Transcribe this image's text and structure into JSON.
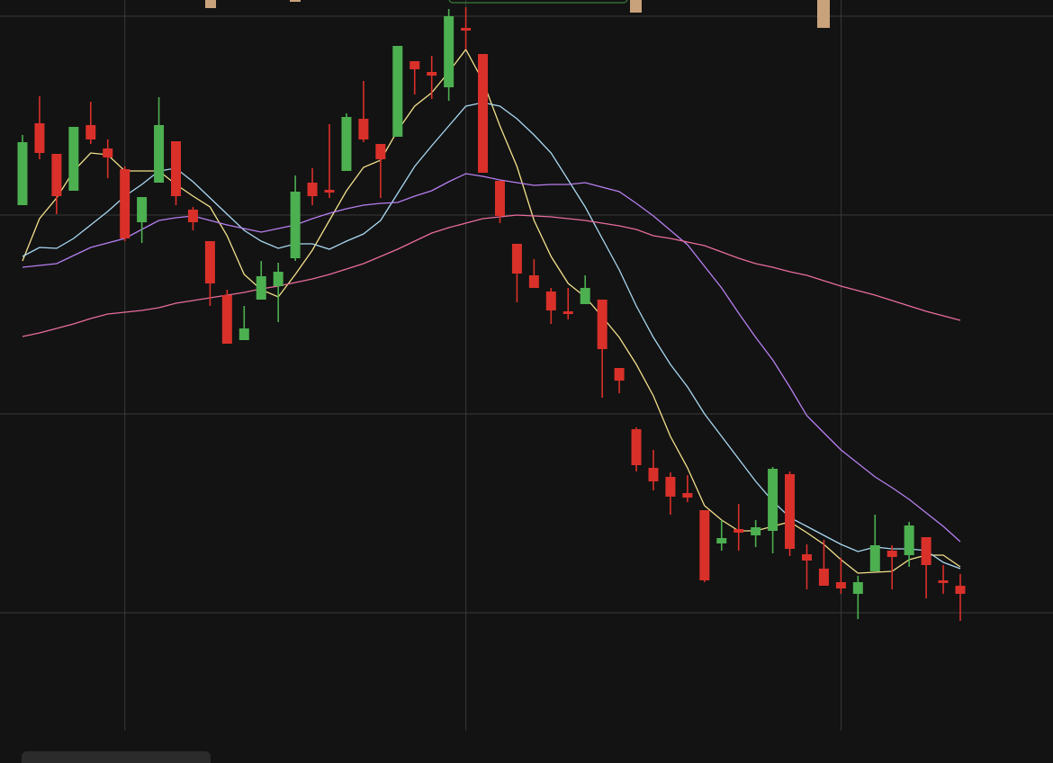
{
  "chart_data": {
    "type": "candlestick",
    "categories": [
      null,
      null,
      null,
      null,
      null,
      null,
      null,
      null,
      null,
      null,
      null,
      null,
      null,
      null,
      null,
      null,
      null,
      null,
      null,
      null,
      null,
      null,
      null,
      null,
      null,
      null,
      null,
      null,
      null,
      null,
      null,
      null,
      null,
      null,
      null,
      null,
      null,
      null,
      null,
      null,
      null,
      null,
      null,
      null,
      null,
      null,
      null,
      null,
      null,
      null,
      null,
      null,
      null,
      null,
      null,
      null
    ],
    "open": [
      620,
      711,
      677,
      636,
      709,
      683,
      660,
      601,
      645,
      691,
      615,
      580,
      520,
      470,
      515,
      530,
      561,
      645,
      637,
      658,
      716,
      688,
      696,
      780,
      768,
      751,
      817,
      788,
      647,
      577,
      542,
      524,
      502,
      510,
      515,
      439,
      371,
      328,
      318,
      300,
      281,
      244,
      260,
      253,
      258,
      321,
      232,
      216,
      201,
      188,
      213,
      236,
      231,
      251,
      203,
      197
    ],
    "high": [
      698,
      741,
      677,
      707,
      735,
      693,
      663,
      629,
      740,
      691,
      618,
      580,
      526,
      508,
      558,
      556,
      653,
      661,
      710,
      722,
      758,
      688,
      797,
      780,
      786,
      838,
      840,
      788,
      647,
      577,
      560,
      528,
      528,
      542,
      515,
      439,
      373,
      348,
      323,
      320,
      281,
      270,
      288,
      270,
      329,
      324,
      243,
      248,
      228,
      208,
      276,
      242,
      268,
      251,
      220,
      210
    ],
    "low": [
      620,
      671,
      610,
      636,
      688,
      650,
      580,
      578,
      645,
      620,
      592,
      508,
      466,
      470,
      515,
      490,
      558,
      620,
      628,
      658,
      690,
      628,
      696,
      743,
      738,
      736,
      793,
      656,
      600,
      512,
      528,
      488,
      493,
      510,
      406,
      411,
      324,
      303,
      276,
      290,
      201,
      236,
      236,
      240,
      233,
      230,
      193,
      197,
      188,
      160,
      213,
      193,
      218,
      183,
      188,
      158
    ],
    "close": [
      690,
      678,
      630,
      707,
      693,
      673,
      583,
      629,
      709,
      630,
      601,
      533,
      466,
      483,
      541,
      546,
      635,
      630,
      634,
      718,
      693,
      671,
      797,
      771,
      764,
      830,
      814,
      656,
      608,
      544,
      528,
      503,
      499,
      528,
      460,
      425,
      331,
      313,
      296,
      295,
      203,
      250,
      256,
      262,
      327,
      238,
      225,
      197,
      194,
      201,
      242,
      229,
      264,
      220,
      200,
      188
    ],
    "up_color": "#4caf50",
    "down_color": "#d9302a",
    "series": [
      {
        "type": "line",
        "color": "#f3e08c",
        "values": [
          558,
          605,
          628,
          658,
          678,
          676,
          658,
          658,
          658,
          643,
          630,
          618,
          586,
          543,
          526,
          518,
          543,
          570,
          603,
          636,
          662,
          670,
          703,
          730,
          745,
          768,
          793,
          758,
          708,
          663,
          603,
          563,
          533,
          518,
          496,
          473,
          443,
          408,
          363,
          328,
          286,
          270,
          258,
          258,
          263,
          268,
          256,
          243,
          226,
          211,
          212,
          213,
          226,
          231,
          231,
          218
        ]
      },
      {
        "type": "line",
        "color": "#a9d8f2",
        "values": [
          563,
          573,
          572,
          583,
          598,
          613,
          630,
          643,
          658,
          661,
          646,
          628,
          610,
          592,
          580,
          572,
          577,
          577,
          571,
          580,
          588,
          603,
          633,
          663,
          686,
          708,
          730,
          734,
          730,
          716,
          698,
          678,
          648,
          618,
          583,
          548,
          508,
          473,
          443,
          418,
          388,
          363,
          338,
          313,
          291,
          273,
          263,
          253,
          243,
          235,
          240,
          238,
          238,
          236,
          223,
          216
        ]
      },
      {
        "type": "line",
        "color": "#b67ff0",
        "values": [
          551,
          553,
          555,
          564,
          573,
          578,
          583,
          593,
          603,
          606,
          608,
          603,
          598,
          594,
          590,
          594,
          598,
          605,
          611,
          616,
          620,
          622,
          623,
          630,
          636,
          646,
          655,
          652,
          648,
          645,
          642,
          643,
          643,
          645,
          640,
          635,
          622,
          608,
          592,
          576,
          552,
          528,
          500,
          473,
          448,
          418,
          386,
          367,
          348,
          333,
          318,
          306,
          293,
          278,
          263,
          246
        ]
      },
      {
        "type": "line",
        "color": "#e86c9d",
        "values": [
          474,
          478,
          483,
          488,
          494,
          499,
          501,
          503,
          506,
          511,
          514,
          517,
          520,
          523,
          527,
          530,
          534,
          538,
          543,
          549,
          555,
          563,
          571,
          580,
          589,
          595,
          600,
          605,
          607,
          609,
          608,
          607,
          605,
          603,
          600,
          597,
          593,
          586,
          583,
          579,
          575,
          568,
          561,
          555,
          551,
          546,
          542,
          536,
          530,
          525,
          520,
          514,
          508,
          502,
          497,
          492
        ]
      }
    ],
    "ylim": [
      36,
      848
    ],
    "yticks": [
      167,
      388,
      609,
      830
    ],
    "grid": true
  }
}
